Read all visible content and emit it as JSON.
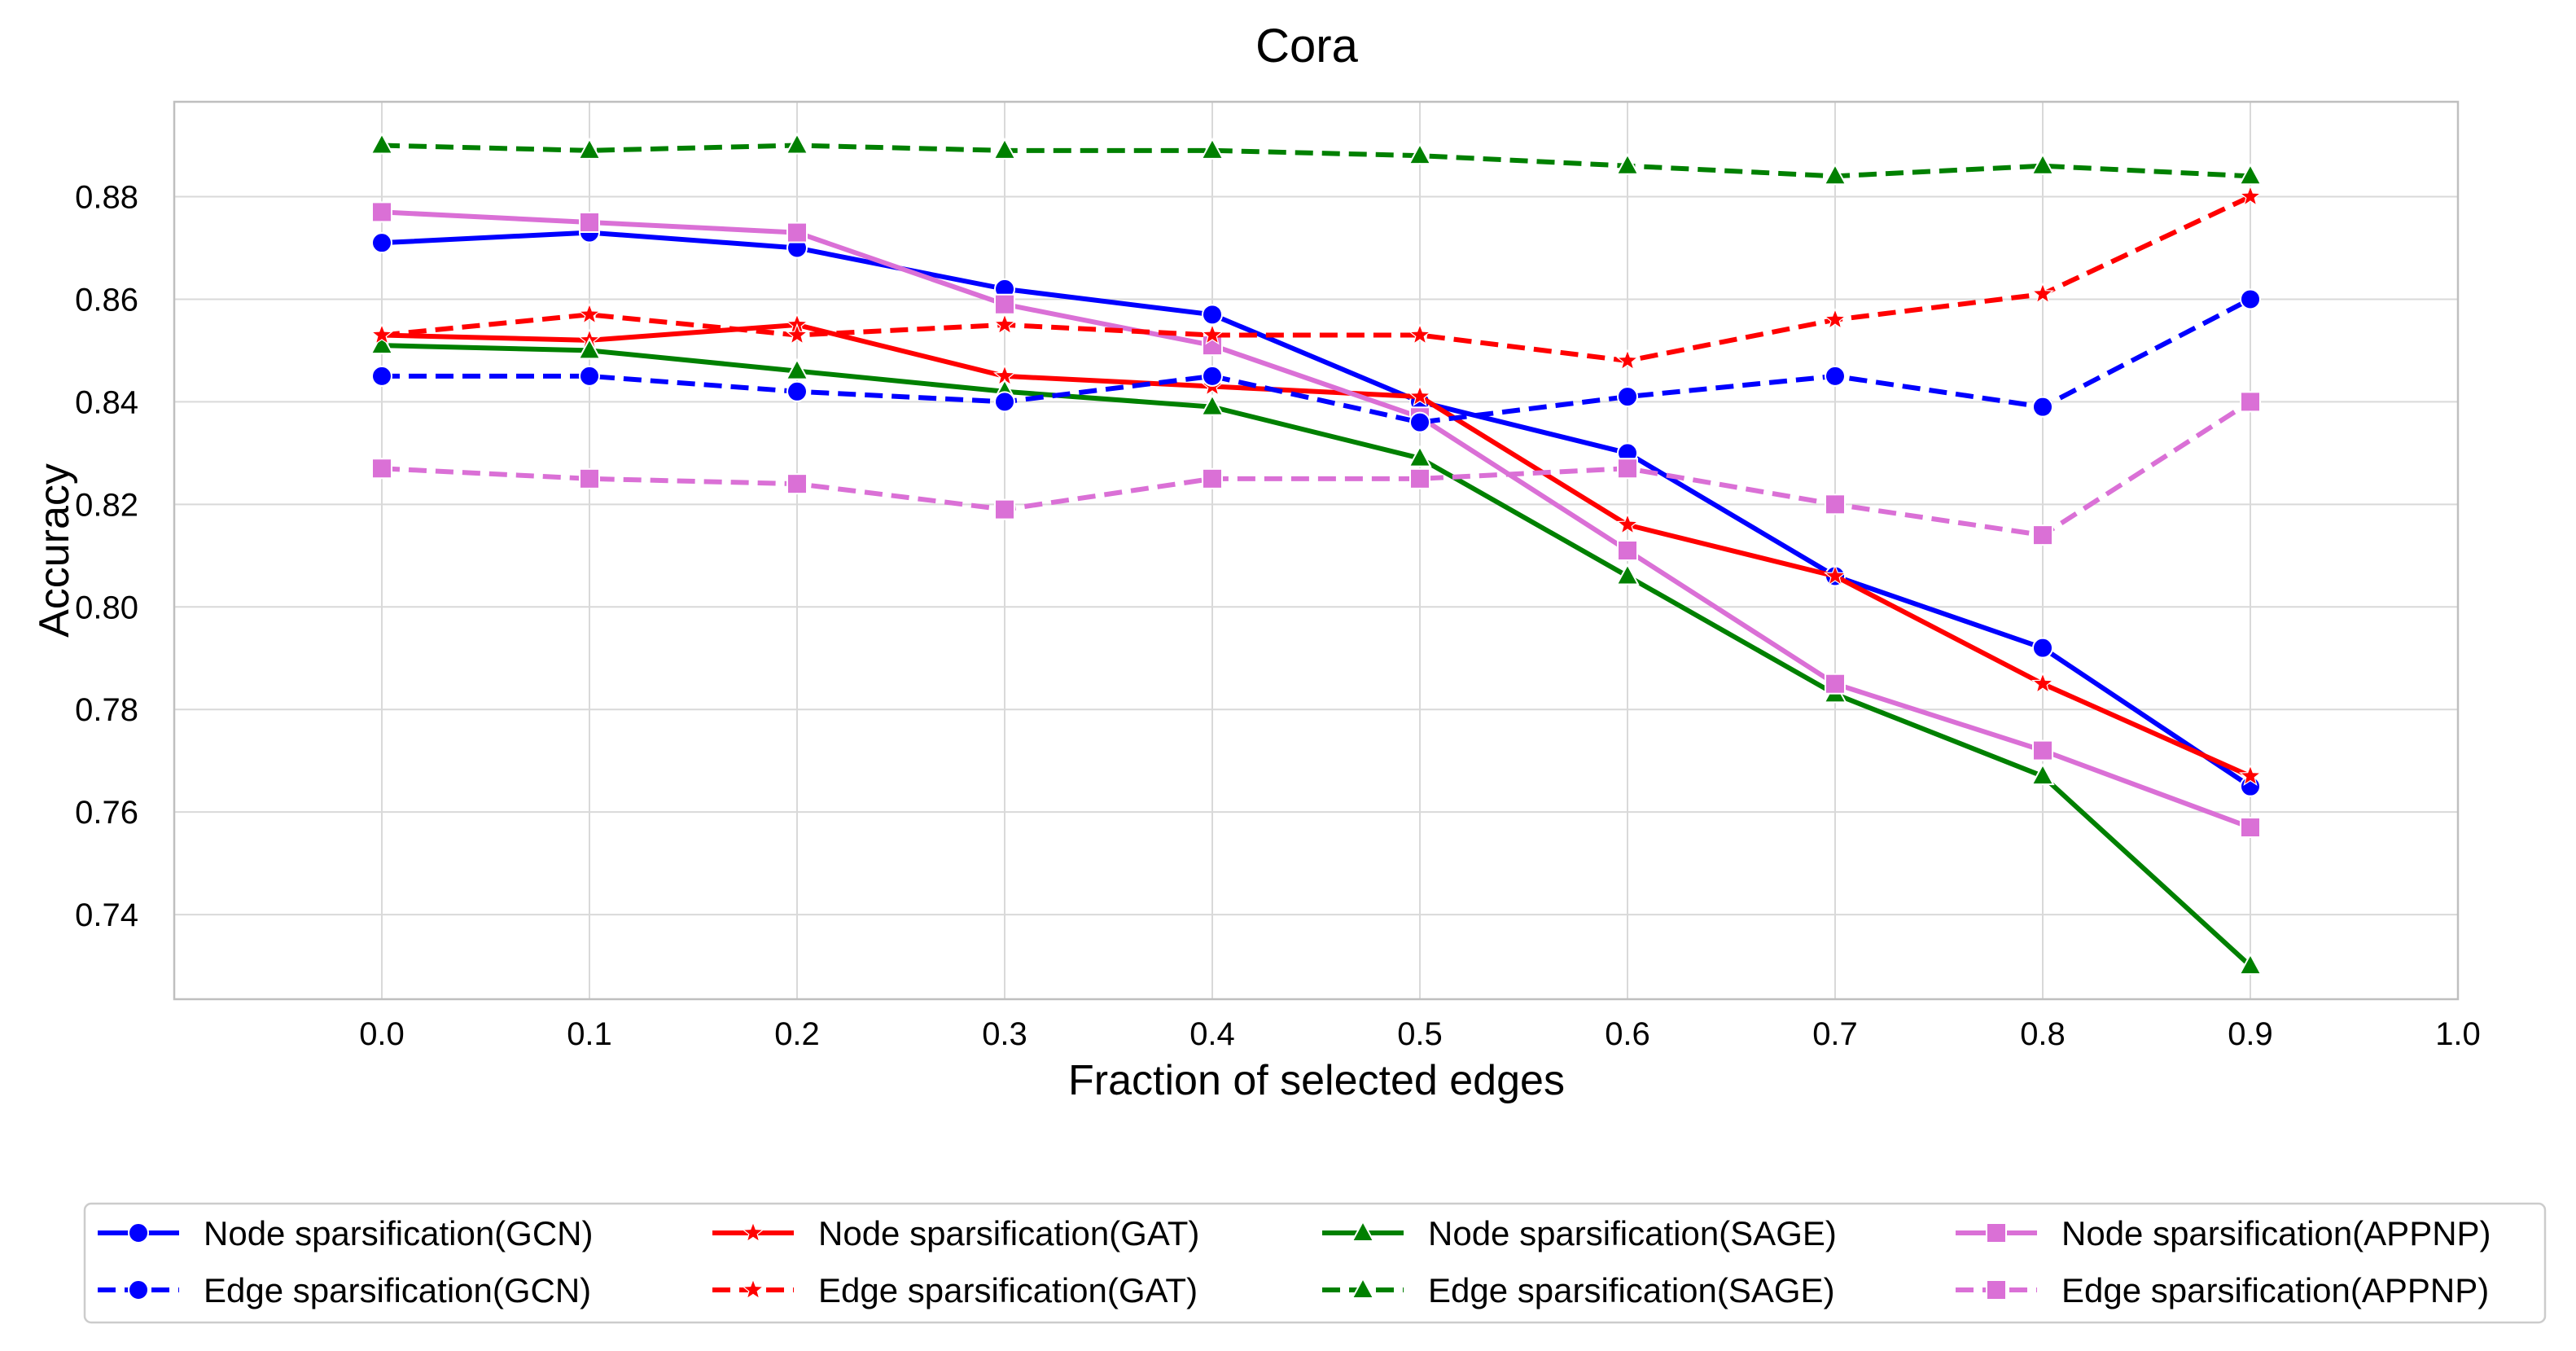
{
  "chart_data": {
    "type": "line",
    "title": "Cora",
    "xlabel": "Fraction of selected edges",
    "ylabel": "Accuracy",
    "xlim": [
      -0.1,
      1.0
    ],
    "ylim": [
      0.7235,
      0.8985
    ],
    "x_ticks": [
      0.0,
      0.1,
      0.2,
      0.3,
      0.4,
      0.5,
      0.6,
      0.7,
      0.8,
      0.9,
      1.0
    ],
    "x_tick_labels": [
      "0.0",
      "0.1",
      "0.2",
      "0.3",
      "0.4",
      "0.5",
      "0.6",
      "0.7",
      "0.8",
      "0.9",
      "1.0"
    ],
    "y_ticks": [
      0.74,
      0.76,
      0.78,
      0.8,
      0.82,
      0.84,
      0.86,
      0.88
    ],
    "y_tick_labels": [
      "0.74",
      "0.76",
      "0.78",
      "0.80",
      "0.82",
      "0.84",
      "0.86",
      "0.88"
    ],
    "grid": true,
    "legend_position": "bottom",
    "x": [
      0.0,
      0.1,
      0.2,
      0.3,
      0.4,
      0.5,
      0.6,
      0.7,
      0.8,
      0.9
    ],
    "series": [
      {
        "name": "Node sparsification(GCN)",
        "color": "#0000ff",
        "dash": "solid",
        "marker": "circle",
        "values": [
          0.871,
          0.873,
          0.87,
          0.862,
          0.857,
          0.84,
          0.83,
          0.806,
          0.792,
          0.765
        ]
      },
      {
        "name": "Node sparsification(GAT)",
        "color": "#ff0000",
        "dash": "solid",
        "marker": "star",
        "values": [
          0.853,
          0.852,
          0.855,
          0.845,
          0.843,
          0.841,
          0.816,
          0.806,
          0.785,
          0.767
        ]
      },
      {
        "name": "Node sparsification(SAGE)",
        "color": "#008000",
        "dash": "solid",
        "marker": "triangle",
        "values": [
          0.851,
          0.85,
          0.846,
          0.842,
          0.839,
          0.829,
          0.806,
          0.783,
          0.767,
          0.73
        ]
      },
      {
        "name": "Node sparsification(APPNP)",
        "color": "#da70d6",
        "dash": "solid",
        "marker": "square",
        "values": [
          0.877,
          0.875,
          0.873,
          0.859,
          0.851,
          0.837,
          0.811,
          0.785,
          0.772,
          0.757
        ]
      },
      {
        "name": "Edge sparsification(GCN)",
        "color": "#0000ff",
        "dash": "dashed",
        "marker": "circle",
        "values": [
          0.845,
          0.845,
          0.842,
          0.84,
          0.845,
          0.836,
          0.841,
          0.845,
          0.839,
          0.86
        ]
      },
      {
        "name": "Edge sparsification(GAT)",
        "color": "#ff0000",
        "dash": "dashed",
        "marker": "star",
        "values": [
          0.853,
          0.857,
          0.853,
          0.855,
          0.853,
          0.853,
          0.848,
          0.856,
          0.861,
          0.88
        ]
      },
      {
        "name": "Edge sparsification(SAGE)",
        "color": "#008000",
        "dash": "dashed",
        "marker": "triangle",
        "values": [
          0.89,
          0.889,
          0.89,
          0.889,
          0.889,
          0.888,
          0.886,
          0.884,
          0.886,
          0.884
        ]
      },
      {
        "name": "Edge sparsification(APPNP)",
        "color": "#da70d6",
        "dash": "dashed",
        "marker": "square",
        "values": [
          0.827,
          0.825,
          0.824,
          0.819,
          0.825,
          0.825,
          0.827,
          0.82,
          0.814,
          0.84
        ]
      }
    ],
    "legend_order": [
      0,
      1,
      2,
      3,
      4,
      5,
      6,
      7
    ]
  }
}
